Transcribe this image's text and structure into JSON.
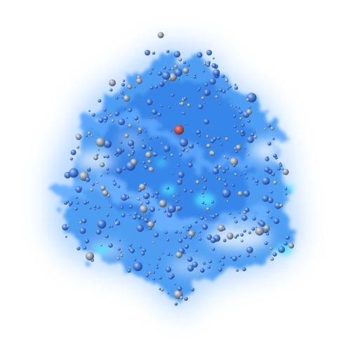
{
  "scene": {
    "colors": {
      "background": "#ffffff",
      "cloud_base": "#2f8ff0",
      "cloud_light": "#8fc6ff",
      "cloud_dark": "#1d6ad6",
      "highlight_cyan": "#4fe4ff",
      "halo_blue": "#2a6fd6",
      "halo_grey": "#7a8796",
      "halo_red": "#b24a44"
    }
  }
}
